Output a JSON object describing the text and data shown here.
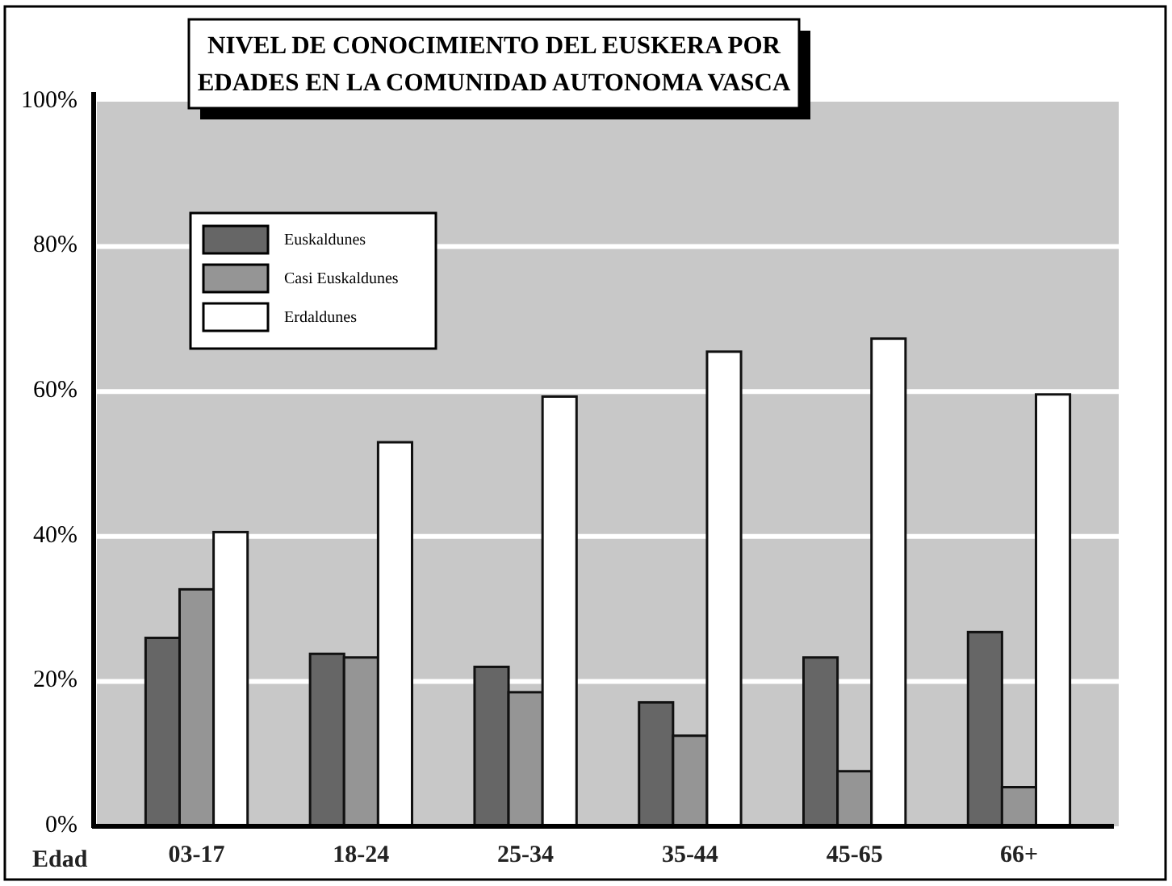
{
  "chart_data": {
    "type": "bar",
    "title": "NIVEL DE CONOCIMIENTO DEL EUSKERA POR EDADES EN LA COMUNIDAD AUTONOMA VASCA",
    "xlabel": "Edad",
    "categories": [
      "03-17",
      "18-24",
      "25-34",
      "35-44",
      "45-65",
      "66+"
    ],
    "series": [
      {
        "name": "Euskaldunes",
        "color": "#666666",
        "values": [
          26,
          23.8,
          22,
          17.1,
          23.3,
          26.8
        ]
      },
      {
        "name": "Casi Euskaldunes",
        "color": "#959595",
        "values": [
          32.7,
          23.3,
          18.5,
          12.5,
          7.6,
          5.4
        ]
      },
      {
        "name": "Erdaldunes",
        "color": "#ffffff",
        "values": [
          40.6,
          53,
          59.3,
          65.5,
          67.3,
          59.6
        ]
      }
    ],
    "ylim": [
      0,
      100
    ],
    "yticks": [
      {
        "value": 0,
        "label": "0%"
      },
      {
        "value": 20,
        "label": "20%"
      },
      {
        "value": 40,
        "label": "40%"
      },
      {
        "value": 60,
        "label": "60%"
      },
      {
        "value": 80,
        "label": "80%"
      },
      {
        "value": 100,
        "label": "100%"
      }
    ],
    "grid": "y",
    "legend": "top left"
  }
}
